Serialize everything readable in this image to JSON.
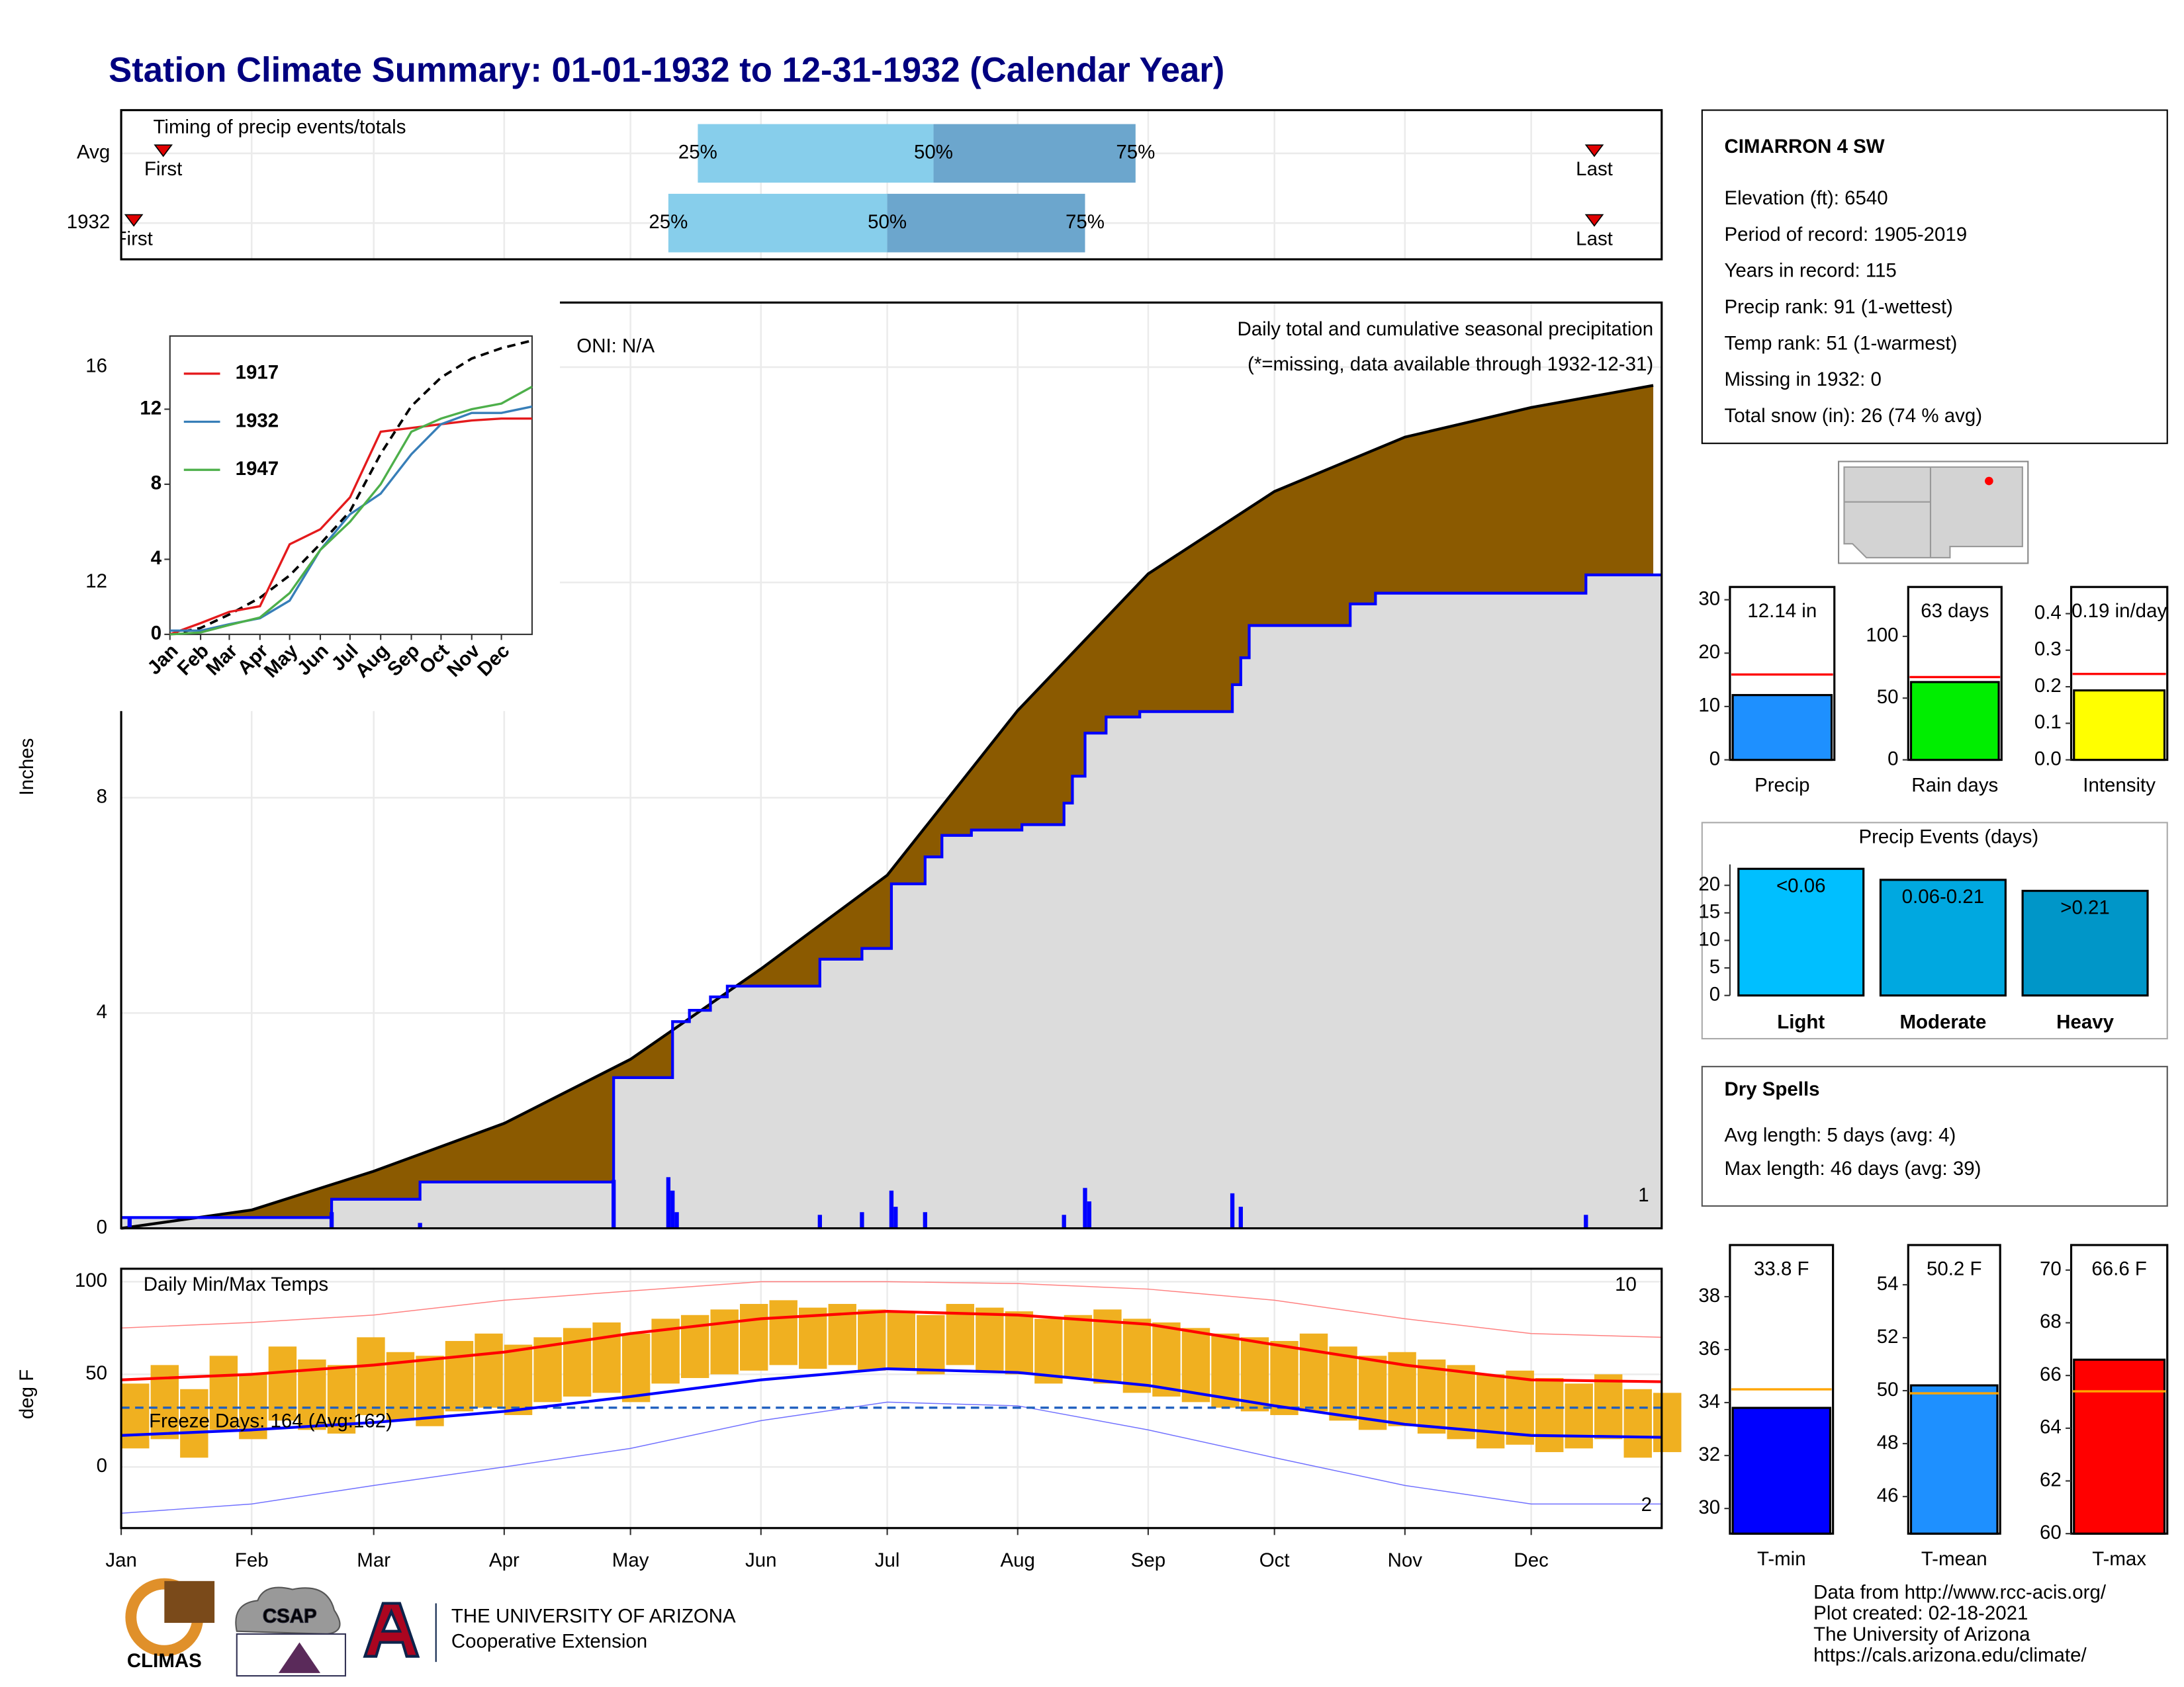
{
  "title": "Station Climate Summary: 01-01-1932 to 12-31-1932 (Calendar Year)",
  "chart_data": [
    {
      "type": "timing",
      "subtitle": "Timing of precip events/totals",
      "xlim": [
        0,
        366
      ],
      "rows": [
        "Avg",
        "1932"
      ],
      "first": [
        10,
        3
      ],
      "p25": [
        137,
        130
      ],
      "p50": [
        193,
        182
      ],
      "p75": [
        241,
        229
      ],
      "last": [
        350,
        350
      ],
      "labels": {
        "first": "First",
        "p25": "25%",
        "p50": "50%",
        "p75": "75%",
        "last": "Last"
      },
      "colors": [
        "#87ceeb",
        "#6ca6cd"
      ],
      "marker_color": "#e00000"
    },
    {
      "type": "precip",
      "xlim": [
        0,
        366
      ],
      "ylim": [
        0,
        17.2
      ],
      "yticks": [
        0,
        4,
        8,
        12,
        16
      ],
      "grid": true,
      "ylabel": "Inches",
      "annotations": [
        {
          "text": "Daily total and cumulative seasonal precipitation",
          "color": "#000000"
        },
        {
          "text": "(*=missing, data available through 1932-12-31)",
          "color": "#ff0000"
        },
        {
          "text": "ONI: N/A",
          "color": "#000000"
        },
        {
          "text": "1",
          "color": "#ffa500"
        }
      ],
      "series": [
        {
          "color": "#8b5a00",
          "x": [
            0,
            31,
            60,
            91,
            121,
            152,
            182,
            213,
            244,
            274,
            305,
            335,
            364
          ],
          "values": [
            0,
            0.34,
            1.06,
            1.95,
            3.14,
            4.82,
            6.56,
            9.62,
            12.16,
            13.69,
            14.7,
            15.25,
            15.66
          ]
        },
        {
          "color": "#0000ff",
          "step": true,
          "x": [
            0,
            50,
            71,
            117,
            131,
            135,
            140,
            144,
            166,
            176,
            183,
            191,
            195,
            202,
            214,
            224,
            226,
            229,
            234,
            242,
            264,
            266,
            268,
            292,
            298,
            348,
            366
          ],
          "values": [
            0.2,
            0.54,
            0.86,
            2.8,
            3.84,
            4.05,
            4.3,
            4.5,
            5.0,
            5.2,
            6.4,
            6.9,
            7.3,
            7.4,
            7.5,
            7.9,
            8.4,
            9.2,
            9.5,
            9.6,
            10.1,
            10.6,
            11.2,
            11.6,
            11.8,
            12.14,
            12.14
          ]
        }
      ],
      "daily": {
        "color": "#0000ff",
        "x": [
          2,
          50,
          71,
          117,
          130,
          131,
          132,
          166,
          176,
          183,
          184,
          191,
          224,
          229,
          230,
          264,
          266,
          348
        ],
        "values": [
          0.2,
          0.3,
          0.1,
          0.9,
          0.95,
          0.7,
          0.3,
          0.25,
          0.3,
          0.7,
          0.4,
          0.3,
          0.25,
          0.75,
          0.5,
          0.65,
          0.4,
          0.25
        ]
      }
    },
    {
      "type": "line",
      "xlim": [
        0,
        366
      ],
      "ylim": [
        0,
        15.9
      ],
      "yticks": [
        0,
        4,
        8,
        12
      ],
      "xticks": [
        {
          "value": 0,
          "label": "Jan"
        },
        {
          "value": 31,
          "label": "Feb"
        },
        {
          "value": 60,
          "label": "Mar"
        },
        {
          "value": 91,
          "label": "Apr"
        },
        {
          "value": 121,
          "label": "May"
        },
        {
          "value": 152,
          "label": "Jun"
        },
        {
          "value": 182,
          "label": "Jul"
        },
        {
          "value": 213,
          "label": "Aug"
        },
        {
          "value": 244,
          "label": "Sep"
        },
        {
          "value": 274,
          "label": "Oct"
        },
        {
          "value": 305,
          "label": "Nov"
        },
        {
          "value": 335,
          "label": "Dec"
        }
      ],
      "x": [
        0,
        31,
        60,
        91,
        121,
        152,
        182,
        213,
        244,
        274,
        305,
        335,
        366
      ],
      "series": [
        {
          "color": "#000000",
          "dash": true,
          "values": [
            0,
            0.34,
            1.06,
            1.95,
            3.14,
            4.82,
            6.56,
            9.62,
            12.16,
            13.69,
            14.7,
            15.25,
            15.66
          ]
        },
        {
          "name": "1917",
          "color": "#e41a1c",
          "values": [
            0,
            0.6,
            1.2,
            1.5,
            4.8,
            5.6,
            7.3,
            10.8,
            11.0,
            11.2,
            11.4,
            11.5,
            11.5
          ]
        },
        {
          "name": "1932",
          "color": "#377eb8",
          "values": [
            0.2,
            0.2,
            0.54,
            0.86,
            1.8,
            4.5,
            6.4,
            7.5,
            9.6,
            11.2,
            11.8,
            11.8,
            12.14
          ]
        },
        {
          "name": "1947",
          "color": "#4daf4a",
          "values": [
            0,
            0.1,
            0.5,
            0.9,
            2.2,
            4.5,
            6.0,
            8.0,
            10.8,
            11.5,
            12.0,
            12.3,
            13.2
          ]
        }
      ]
    },
    {
      "type": "temp",
      "title": "Daily Min/Max Temps",
      "ylabel": "deg F",
      "xlim": [
        0,
        366
      ],
      "ylim": [
        -33,
        107
      ],
      "yticks": [
        0,
        50,
        100
      ],
      "grid": true,
      "xticks": [
        {
          "value": 0,
          "label": "Jan"
        },
        {
          "value": 31,
          "label": "Feb"
        },
        {
          "value": 60,
          "label": "Mar"
        },
        {
          "value": 91,
          "label": "Apr"
        },
        {
          "value": 121,
          "label": "May"
        },
        {
          "value": 152,
          "label": "Jun"
        },
        {
          "value": 182,
          "label": "Jul"
        },
        {
          "value": 213,
          "label": "Aug"
        },
        {
          "value": 244,
          "label": "Sep"
        },
        {
          "value": 274,
          "label": "Oct"
        },
        {
          "value": 305,
          "label": "Nov"
        },
        {
          "value": 335,
          "label": "Dec"
        }
      ],
      "freeze": 32,
      "freeze_color": "#1f5fbf",
      "bar_color": "#f0b020",
      "annotations": [
        {
          "text": "Freeze Days: 164 (Avg:162)",
          "color": "#2f4f8f"
        },
        {
          "text": "10",
          "color": "#ff0000"
        },
        {
          "text": "2",
          "color": "#0000cd"
        }
      ],
      "x": [
        0,
        7,
        14,
        21,
        28,
        35,
        42,
        49,
        56,
        63,
        70,
        77,
        84,
        91,
        98,
        105,
        112,
        119,
        126,
        133,
        140,
        147,
        154,
        161,
        168,
        175,
        182,
        189,
        196,
        203,
        210,
        217,
        224,
        231,
        238,
        245,
        252,
        259,
        266,
        273,
        280,
        287,
        294,
        301,
        308,
        315,
        322,
        329,
        336,
        343,
        350,
        357,
        364
      ],
      "max": [
        45,
        55,
        42,
        60,
        50,
        65,
        58,
        55,
        70,
        62,
        60,
        68,
        72,
        66,
        70,
        75,
        78,
        72,
        80,
        82,
        85,
        88,
        90,
        86,
        88,
        85,
        84,
        82,
        88,
        86,
        84,
        80,
        82,
        85,
        80,
        78,
        75,
        72,
        70,
        68,
        72,
        65,
        60,
        62,
        58,
        55,
        50,
        52,
        48,
        45,
        50,
        42,
        40
      ],
      "min": [
        10,
        15,
        5,
        20,
        15,
        25,
        20,
        18,
        28,
        25,
        22,
        30,
        32,
        28,
        35,
        38,
        40,
        35,
        45,
        48,
        50,
        52,
        55,
        53,
        55,
        52,
        53,
        50,
        55,
        52,
        50,
        45,
        48,
        45,
        40,
        38,
        35,
        32,
        30,
        28,
        30,
        25,
        20,
        22,
        18,
        15,
        10,
        12,
        8,
        10,
        15,
        5,
        8
      ],
      "line_x": [
        0,
        31,
        60,
        91,
        121,
        152,
        182,
        213,
        244,
        274,
        305,
        335,
        366
      ],
      "lines": [
        {
          "color": "#ff8080",
          "width": 0.7,
          "values": [
            75,
            78,
            82,
            90,
            95,
            100,
            100,
            99,
            96,
            90,
            80,
            72,
            70
          ]
        },
        {
          "color": "#7070ff",
          "width": 0.7,
          "values": [
            -25,
            -20,
            -10,
            0,
            10,
            25,
            35,
            33,
            20,
            5,
            -10,
            -20,
            -20
          ]
        },
        {
          "color": "#ff0000",
          "width": 2,
          "values": [
            47,
            50,
            55,
            62,
            72,
            80,
            84,
            82,
            77,
            66,
            55,
            47,
            46
          ]
        },
        {
          "color": "#0000ff",
          "width": 2,
          "values": [
            17,
            20,
            24,
            30,
            38,
            47,
            53,
            51,
            44,
            33,
            23,
            17,
            16
          ]
        }
      ]
    },
    {
      "type": "gauge",
      "xlabel": "Precip",
      "value": 12.14,
      "value_label": "12.14 in",
      "avg": 16.0,
      "color": "#1e90ff",
      "avg_color": "#ff0000",
      "ylim": [
        0,
        32.4
      ],
      "yticks": [
        0,
        10,
        20,
        30
      ]
    },
    {
      "type": "gauge",
      "xlabel": "Rain days",
      "value": 63,
      "value_label": "63 days",
      "avg": 67,
      "color": "#00ee00",
      "avg_color": "#ff0000",
      "ylim": [
        0,
        140
      ],
      "yticks": [
        0,
        50,
        100
      ]
    },
    {
      "type": "gauge",
      "xlabel": "Intensity",
      "value": 0.19,
      "value_label": "0.19 in/day",
      "avg": 0.235,
      "color": "#ffff00",
      "avg_color": "#ff0000",
      "ylim": [
        0,
        0.473
      ],
      "yticks": [
        {
          "value": 0,
          "label": "0.0"
        },
        0.1,
        0.2,
        0.3,
        0.4
      ]
    },
    {
      "type": "bar",
      "title": "Precip Events (days)",
      "categories": [
        "Light",
        "Moderate",
        "Heavy"
      ],
      "bin_labels": [
        "<0.06",
        "0.06-0.21",
        ">0.21"
      ],
      "values": [
        23,
        21,
        19
      ],
      "colors": [
        "#00bfff",
        "#00a8e0",
        "#0096c8"
      ],
      "ylim": [
        0,
        23.8
      ],
      "yticks": [
        0,
        5,
        10,
        15,
        20
      ]
    },
    {
      "type": "gauge",
      "xlabel": "T-min",
      "value": 33.8,
      "value_label": "33.8 F",
      "avg": 34.5,
      "color": "#0000ff",
      "avg_color": "#ffa500",
      "ylim": [
        29.05,
        39.95
      ],
      "yticks": [
        30,
        32,
        34,
        36,
        38
      ]
    },
    {
      "type": "gauge",
      "xlabel": "T-mean",
      "value": 50.2,
      "value_label": "50.2 F",
      "avg": 49.9,
      "color": "#1e90ff",
      "avg_color": "#ffa500",
      "ylim": [
        44.6,
        55.5
      ],
      "yticks": [
        46,
        48,
        50,
        52,
        54
      ]
    },
    {
      "type": "gauge",
      "xlabel": "T-max",
      "value": 66.6,
      "value_label": "66.6 F",
      "avg": 65.4,
      "color": "#ff0000",
      "avg_color": "#ffa500",
      "ylim": [
        60,
        70.95
      ],
      "yticks": [
        60,
        62,
        64,
        66,
        68,
        70
      ]
    }
  ],
  "station": {
    "name": "CIMARRON 4 SW",
    "lines": [
      "Elevation (ft): 6540",
      "Period of record: 1905-2019",
      "Years in record: 115",
      "Precip rank: 91 (1-wettest)",
      "Temp rank: 51 (1-warmest)",
      "Missing in 1932: 0",
      "Total snow (in): 26 (74 % avg)"
    ]
  },
  "dry_spells": {
    "title": "Dry Spells",
    "lines": [
      "Avg length: 5 days (avg: 4)",
      "Max length: 46 days (avg: 39)"
    ]
  },
  "footer": {
    "logos": [
      "CLIMAS",
      "CSAP",
      "THE UNIVERSITY OF ARIZONA",
      "Cooperative Extension"
    ],
    "credits": [
      "Data from http://www.rcc-acis.org/",
      "Plot created: 02-18-2021",
      "The University of Arizona",
      "https://cals.arizona.edu/climate/"
    ]
  }
}
